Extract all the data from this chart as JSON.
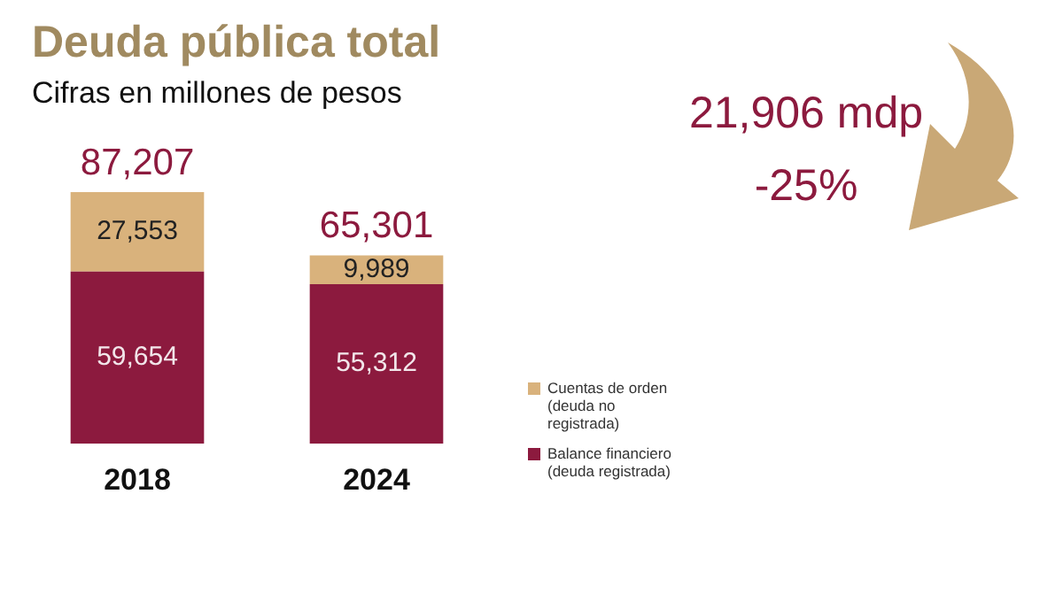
{
  "chart_data": {
    "type": "bar",
    "title": "Deuda pública total",
    "subtitle": "Cifras en millones de pesos",
    "categories": [
      "2018",
      "2024"
    ],
    "stacked": true,
    "totals": [
      "87,207",
      "65,301"
    ],
    "legend": "right",
    "series": [
      {
        "name": "Balance financiero (deuda registrada)",
        "color": "#8c1a3e",
        "values": [
          59654,
          55312
        ],
        "value_labels": [
          "59,654",
          "55,312"
        ]
      },
      {
        "name": "Cuentas de orden (deuda no registrada)",
        "color": "#d9b27c",
        "values": [
          27553,
          9989
        ],
        "value_labels": [
          "27,553",
          "9,989"
        ]
      }
    ],
    "annotations": [
      "21,906 mdp",
      "-25%"
    ]
  }
}
